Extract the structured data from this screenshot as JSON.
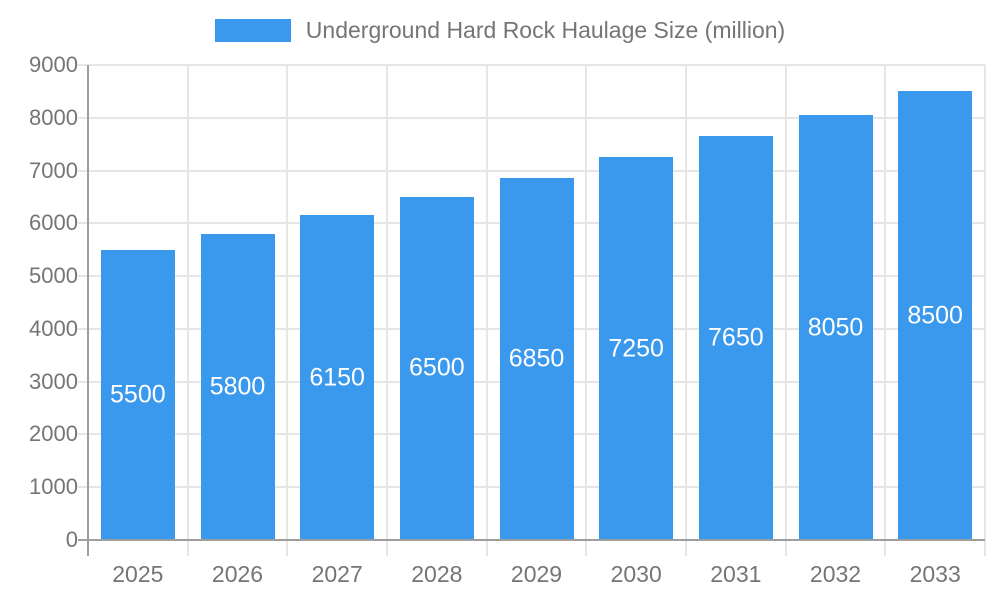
{
  "chart_data": {
    "type": "bar",
    "title": "Underground Hard Rock Haulage Size (million)",
    "categories": [
      "2025",
      "2026",
      "2027",
      "2028",
      "2029",
      "2030",
      "2031",
      "2032",
      "2033"
    ],
    "values": [
      5500,
      5800,
      6150,
      6500,
      6850,
      7250,
      7650,
      8050,
      8500
    ],
    "xlabel": "",
    "ylabel": "",
    "ylim": [
      0,
      9000
    ],
    "ytick_step": 1000,
    "grid": true,
    "legend_position": "top",
    "bar_value_labels": true
  },
  "colors": {
    "bar": "#3A99EC",
    "axis": "#9E9E9E",
    "gridline": "#E6E6E6",
    "tick_label": "#757575",
    "legend_label": "#757575",
    "bar_value_label": "#FFFFFF",
    "background": "#FFFFFF"
  }
}
